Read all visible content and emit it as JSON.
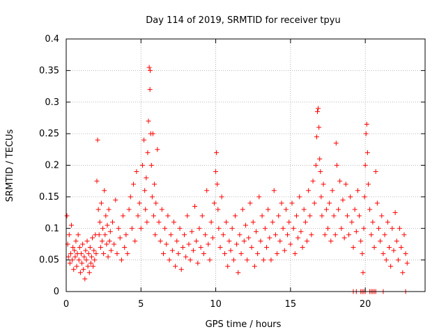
{
  "chart_data": {
    "type": "scatter",
    "title": "Day 114 of 2019, SRMTID for receiver tpyu",
    "xlabel": "GPS time / hours",
    "ylabel": "SRMTID / TECUs",
    "xlim": [
      0,
      24
    ],
    "ylim": [
      0,
      0.4
    ],
    "x_ticks": [
      0,
      5,
      10,
      15,
      20
    ],
    "y_ticks": [
      0,
      0.05,
      0.1,
      0.15,
      0.2,
      0.25,
      0.3,
      0.35,
      0.4
    ],
    "x_tick_labels": [
      "0",
      "5",
      "10",
      "15",
      "20"
    ],
    "y_tick_labels": [
      "0",
      "0.05",
      "0.1",
      "0.15",
      "0.2",
      "0.25",
      "0.3",
      "0.35",
      "0.4"
    ],
    "grid": true,
    "legend": "none",
    "marker": "plus",
    "color": "#ff0000",
    "series": [
      {
        "points": [
          [
            0.05,
            0.12
          ],
          [
            0.1,
            0.075
          ],
          [
            0.15,
            0.055
          ],
          [
            0.2,
            0.09
          ],
          [
            0.25,
            0.045
          ],
          [
            0.3,
            0.06
          ],
          [
            0.35,
            0.105
          ],
          [
            0.4,
            0.05
          ],
          [
            0.45,
            0.07
          ],
          [
            0.5,
            0.035
          ],
          [
            0.55,
            0.065
          ],
          [
            0.6,
            0.055
          ],
          [
            0.65,
            0.08
          ],
          [
            0.7,
            0.04
          ],
          [
            0.75,
            0.06
          ],
          [
            0.8,
            0.09
          ],
          [
            0.85,
            0.05
          ],
          [
            0.9,
            0.07
          ],
          [
            0.95,
            0.03
          ],
          [
            1.0,
            0.06
          ],
          [
            1.05,
            0.045
          ],
          [
            1.1,
            0.075
          ],
          [
            1.15,
            0.035
          ],
          [
            1.2,
            0.055
          ],
          [
            1.25,
            0.02
          ],
          [
            1.3,
            0.065
          ],
          [
            1.35,
            0.05
          ],
          [
            1.4,
            0.08
          ],
          [
            1.45,
            0.04
          ],
          [
            1.5,
            0.06
          ],
          [
            1.55,
            0.03
          ],
          [
            1.6,
            0.07
          ],
          [
            1.65,
            0.045
          ],
          [
            1.7,
            0.055
          ],
          [
            1.75,
            0.085
          ],
          [
            1.8,
            0.04
          ],
          [
            1.85,
            0.065
          ],
          [
            1.9,
            0.05
          ],
          [
            1.95,
            0.09
          ],
          [
            2.0,
            0.06
          ],
          [
            2.05,
            0.175
          ],
          [
            2.1,
            0.24
          ],
          [
            2.15,
            0.13
          ],
          [
            2.2,
            0.09
          ],
          [
            2.25,
            0.11
          ],
          [
            2.3,
            0.07
          ],
          [
            2.35,
            0.14
          ],
          [
            2.4,
            0.08
          ],
          [
            2.45,
            0.1
          ],
          [
            2.5,
            0.06
          ],
          [
            2.55,
            0.16
          ],
          [
            2.6,
            0.09
          ],
          [
            2.65,
            0.12
          ],
          [
            2.7,
            0.075
          ],
          [
            2.75,
            0.105
          ],
          [
            2.8,
            0.055
          ],
          [
            2.85,
            0.13
          ],
          [
            2.9,
            0.08
          ],
          [
            2.95,
            0.095
          ],
          [
            3.0,
            0.065
          ],
          [
            3.1,
            0.11
          ],
          [
            3.2,
            0.075
          ],
          [
            3.3,
            0.145
          ],
          [
            3.4,
            0.06
          ],
          [
            3.5,
            0.1
          ],
          [
            3.6,
            0.085
          ],
          [
            3.7,
            0.05
          ],
          [
            3.8,
            0.12
          ],
          [
            3.9,
            0.07
          ],
          [
            4.0,
            0.09
          ],
          [
            4.1,
            0.06
          ],
          [
            4.2,
            0.13
          ],
          [
            4.3,
            0.15
          ],
          [
            4.4,
            0.1
          ],
          [
            4.5,
            0.17
          ],
          [
            4.6,
            0.08
          ],
          [
            4.7,
            0.19
          ],
          [
            4.8,
            0.12
          ],
          [
            4.9,
            0.14
          ],
          [
            5.0,
            0.1
          ],
          [
            5.1,
            0.2
          ],
          [
            5.2,
            0.24
          ],
          [
            5.25,
            0.16
          ],
          [
            5.3,
            0.13
          ],
          [
            5.35,
            0.18
          ],
          [
            5.4,
            0.11
          ],
          [
            5.45,
            0.22
          ],
          [
            5.5,
            0.27
          ],
          [
            5.55,
            0.355
          ],
          [
            5.6,
            0.32
          ],
          [
            5.62,
            0.35
          ],
          [
            5.65,
            0.25
          ],
          [
            5.7,
            0.2
          ],
          [
            5.75,
            0.15
          ],
          [
            5.8,
            0.25
          ],
          [
            5.85,
            0.12
          ],
          [
            5.9,
            0.17
          ],
          [
            5.95,
            0.09
          ],
          [
            6.0,
            0.14
          ],
          [
            6.1,
            0.225
          ],
          [
            6.2,
            0.11
          ],
          [
            6.3,
            0.08
          ],
          [
            6.4,
            0.13
          ],
          [
            6.5,
            0.06
          ],
          [
            6.6,
            0.1
          ],
          [
            6.7,
            0.075
          ],
          [
            6.8,
            0.12
          ],
          [
            6.9,
            0.05
          ],
          [
            7.0,
            0.09
          ],
          [
            7.1,
            0.065
          ],
          [
            7.2,
            0.11
          ],
          [
            7.3,
            0.04
          ],
          [
            7.4,
            0.08
          ],
          [
            7.5,
            0.06
          ],
          [
            7.6,
            0.1
          ],
          [
            7.7,
            0.035
          ],
          [
            7.8,
            0.07
          ],
          [
            7.9,
            0.09
          ],
          [
            8.0,
            0.055
          ],
          [
            8.1,
            0.12
          ],
          [
            8.2,
            0.075
          ],
          [
            8.3,
            0.05
          ],
          [
            8.4,
            0.095
          ],
          [
            8.5,
            0.065
          ],
          [
            8.6,
            0.135
          ],
          [
            8.7,
            0.08
          ],
          [
            8.8,
            0.045
          ],
          [
            8.9,
            0.1
          ],
          [
            9.0,
            0.07
          ],
          [
            9.1,
            0.12
          ],
          [
            9.2,
            0.06
          ],
          [
            9.3,
            0.09
          ],
          [
            9.4,
            0.16
          ],
          [
            9.5,
            0.075
          ],
          [
            9.6,
            0.05
          ],
          [
            9.7,
            0.11
          ],
          [
            9.8,
            0.085
          ],
          [
            9.9,
            0.14
          ],
          [
            10.0,
            0.19
          ],
          [
            10.05,
            0.22
          ],
          [
            10.1,
            0.17
          ],
          [
            10.15,
            0.13
          ],
          [
            10.2,
            0.1
          ],
          [
            10.3,
            0.07
          ],
          [
            10.4,
            0.15
          ],
          [
            10.5,
            0.09
          ],
          [
            10.6,
            0.06
          ],
          [
            10.7,
            0.11
          ],
          [
            10.8,
            0.04
          ],
          [
            10.9,
            0.08
          ],
          [
            11.0,
            0.065
          ],
          [
            11.1,
            0.1
          ],
          [
            11.2,
            0.05
          ],
          [
            11.3,
            0.12
          ],
          [
            11.4,
            0.075
          ],
          [
            11.5,
            0.03
          ],
          [
            11.6,
            0.09
          ],
          [
            11.7,
            0.06
          ],
          [
            11.8,
            0.13
          ],
          [
            11.9,
            0.08
          ],
          [
            12.0,
            0.105
          ],
          [
            12.1,
            0.05
          ],
          [
            12.2,
            0.085
          ],
          [
            12.3,
            0.14
          ],
          [
            12.4,
            0.07
          ],
          [
            12.5,
            0.11
          ],
          [
            12.6,
            0.04
          ],
          [
            12.7,
            0.095
          ],
          [
            12.8,
            0.06
          ],
          [
            12.9,
            0.15
          ],
          [
            13.0,
            0.08
          ],
          [
            13.1,
            0.12
          ],
          [
            13.2,
            0.05
          ],
          [
            13.3,
            0.1
          ],
          [
            13.4,
            0.07
          ],
          [
            13.5,
            0.13
          ],
          [
            13.6,
            0.085
          ],
          [
            13.7,
            0.05
          ],
          [
            13.8,
            0.11
          ],
          [
            13.9,
            0.16
          ],
          [
            14.0,
            0.09
          ],
          [
            14.1,
            0.06
          ],
          [
            14.2,
            0.12
          ],
          [
            14.3,
            0.08
          ],
          [
            14.4,
            0.14
          ],
          [
            14.5,
            0.1
          ],
          [
            14.6,
            0.065
          ],
          [
            14.7,
            0.13
          ],
          [
            14.8,
            0.09
          ],
          [
            14.9,
            0.11
          ],
          [
            15.0,
            0.075
          ],
          [
            15.1,
            0.14
          ],
          [
            15.2,
            0.1
          ],
          [
            15.3,
            0.06
          ],
          [
            15.4,
            0.12
          ],
          [
            15.5,
            0.085
          ],
          [
            15.6,
            0.15
          ],
          [
            15.7,
            0.095
          ],
          [
            15.8,
            0.07
          ],
          [
            15.9,
            0.13
          ],
          [
            16.0,
            0.11
          ],
          [
            16.1,
            0.08
          ],
          [
            16.2,
            0.16
          ],
          [
            16.3,
            0.12
          ],
          [
            16.4,
            0.09
          ],
          [
            16.5,
            0.175
          ],
          [
            16.6,
            0.14
          ],
          [
            16.7,
            0.2
          ],
          [
            16.75,
            0.245
          ],
          [
            16.8,
            0.285
          ],
          [
            16.85,
            0.29
          ],
          [
            16.9,
            0.26
          ],
          [
            16.95,
            0.21
          ],
          [
            17.0,
            0.19
          ],
          [
            17.05,
            0.15
          ],
          [
            17.1,
            0.12
          ],
          [
            17.2,
            0.17
          ],
          [
            17.3,
            0.09
          ],
          [
            17.4,
            0.13
          ],
          [
            17.5,
            0.1
          ],
          [
            17.6,
            0.14
          ],
          [
            17.7,
            0.08
          ],
          [
            17.8,
            0.16
          ],
          [
            17.9,
            0.12
          ],
          [
            18.0,
            0.09
          ],
          [
            18.05,
            0.235
          ],
          [
            18.1,
            0.2
          ],
          [
            18.2,
            0.13
          ],
          [
            18.3,
            0.175
          ],
          [
            18.4,
            0.1
          ],
          [
            18.5,
            0.145
          ],
          [
            18.6,
            0.085
          ],
          [
            18.7,
            0.17
          ],
          [
            18.8,
            0.12
          ],
          [
            18.9,
            0.09
          ],
          [
            19.0,
            0.15
          ],
          [
            19.1,
            0.11
          ],
          [
            19.2,
            0.07
          ],
          [
            19.3,
            0.13
          ],
          [
            19.4,
            0.095
          ],
          [
            19.5,
            0.16
          ],
          [
            19.6,
            0.12
          ],
          [
            19.7,
            0.08
          ],
          [
            19.8,
            0.06
          ],
          [
            19.85,
            0.03
          ],
          [
            19.9,
            0.1
          ],
          [
            19.95,
            0.15
          ],
          [
            20.0,
            0.2
          ],
          [
            20.05,
            0.25
          ],
          [
            20.1,
            0.265
          ],
          [
            20.15,
            0.22
          ],
          [
            20.2,
            0.17
          ],
          [
            20.3,
            0.13
          ],
          [
            20.4,
            0.09
          ],
          [
            20.5,
            0.11
          ],
          [
            20.6,
            0.07
          ],
          [
            20.7,
            0.19
          ],
          [
            20.8,
            0.14
          ],
          [
            20.9,
            0.1
          ],
          [
            21.0,
            0.08
          ],
          [
            21.1,
            0.12
          ],
          [
            21.2,
            0.06
          ],
          [
            21.3,
            0.09
          ],
          [
            21.4,
            0.05
          ],
          [
            21.5,
            0.11
          ],
          [
            21.6,
            0.07
          ],
          [
            21.7,
            0.04
          ],
          [
            21.8,
            0.1
          ],
          [
            21.9,
            0.065
          ],
          [
            22.0,
            0.125
          ],
          [
            22.1,
            0.08
          ],
          [
            22.2,
            0.05
          ],
          [
            22.3,
            0.1
          ],
          [
            22.4,
            0.07
          ],
          [
            22.5,
            0.03
          ],
          [
            22.6,
            0.09
          ],
          [
            22.7,
            0.06
          ],
          [
            22.8,
            0.045
          ],
          [
            19.2,
            0.0
          ],
          [
            19.4,
            0.0
          ],
          [
            19.7,
            0.0
          ],
          [
            19.8,
            0.0
          ],
          [
            19.9,
            0.0
          ],
          [
            20.0,
            0.0
          ],
          [
            20.3,
            0.0
          ],
          [
            20.4,
            0.0
          ],
          [
            20.5,
            0.0
          ],
          [
            20.6,
            0.0
          ],
          [
            20.7,
            0.0
          ],
          [
            21.2,
            0.0
          ],
          [
            22.7,
            0.0
          ]
        ]
      }
    ]
  }
}
